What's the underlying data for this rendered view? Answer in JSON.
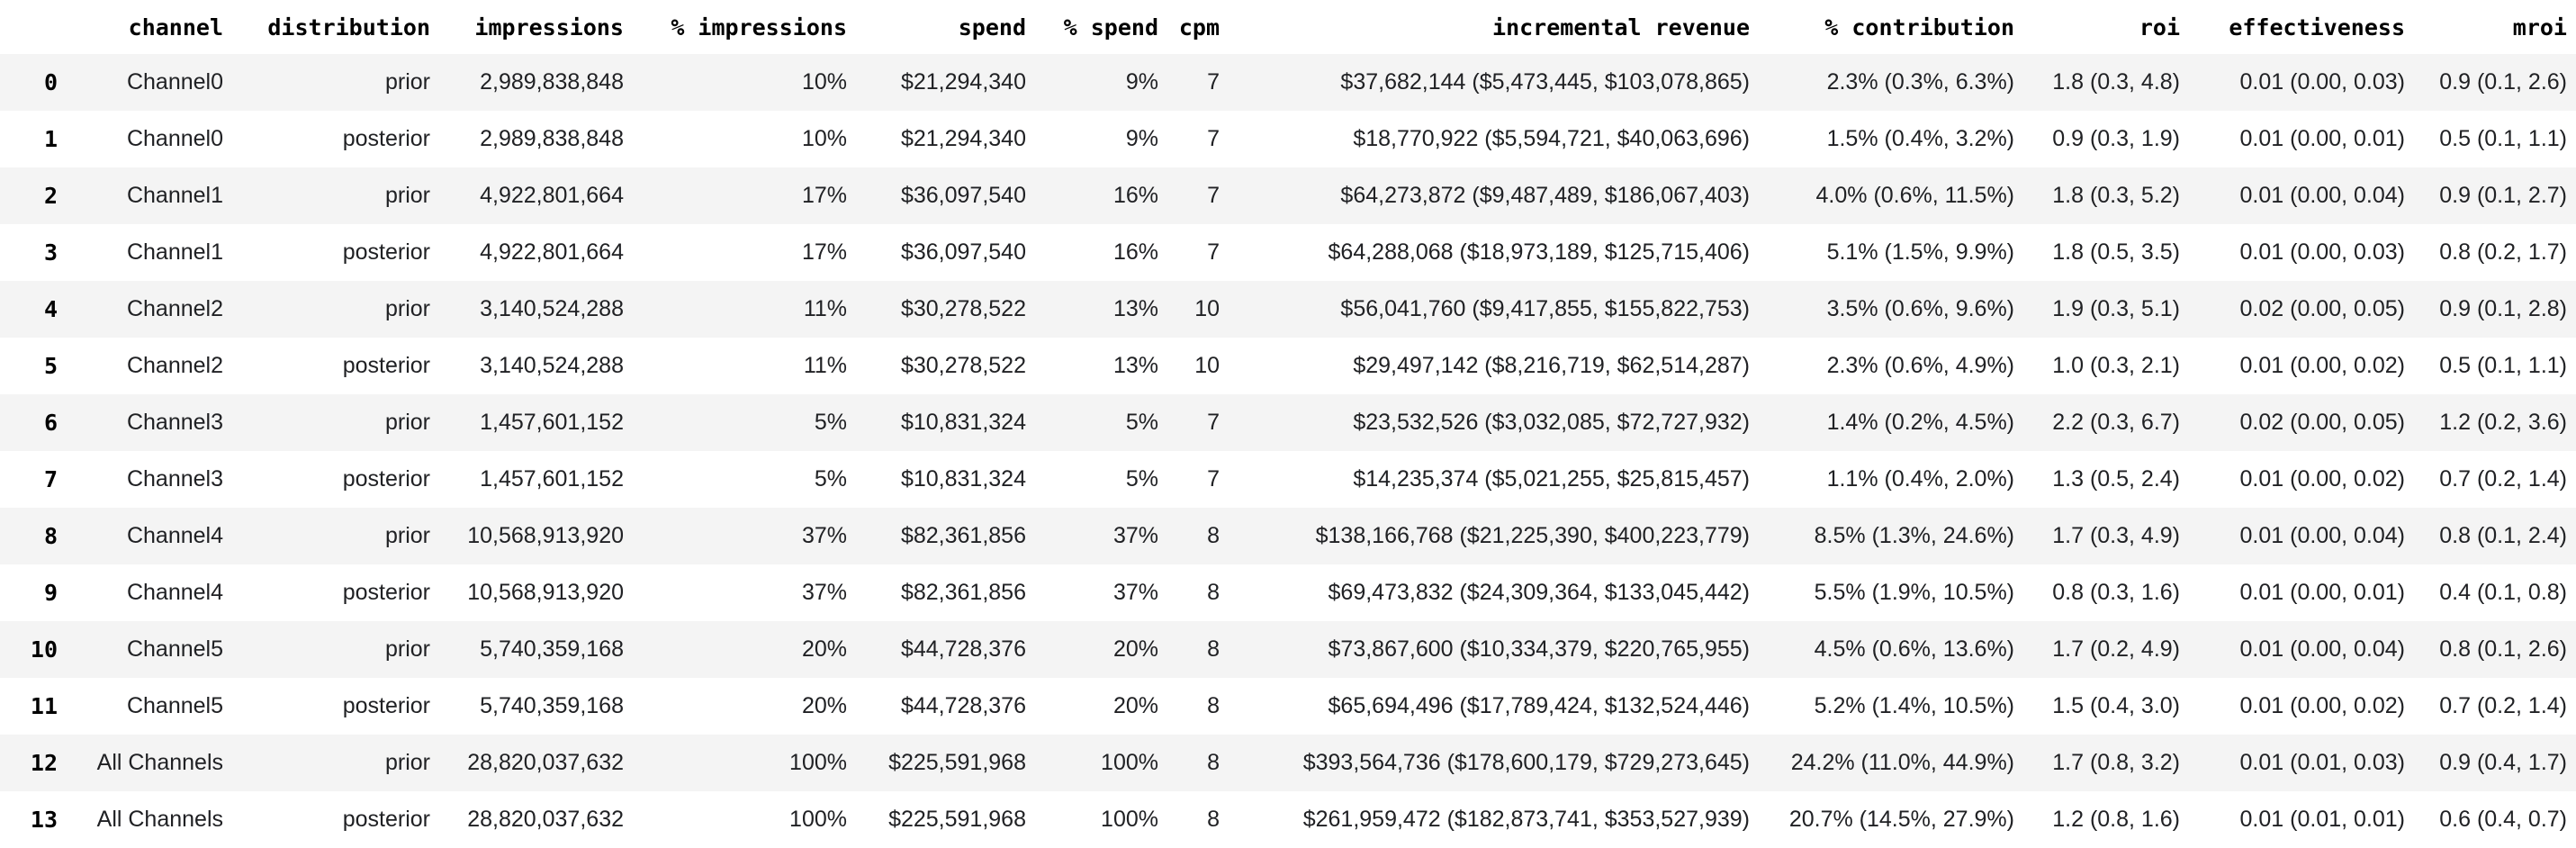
{
  "style": {
    "stripe_color": "#f4f4f4",
    "text_color": "#202124",
    "header_color": "#000000"
  },
  "chart_data": {
    "type": "table",
    "title": "",
    "columns": [
      "channel",
      "distribution",
      "impressions",
      "% impressions",
      "spend",
      "% spend",
      "cpm",
      "incremental revenue",
      "% contribution",
      "roi",
      "effectiveness",
      "mroi"
    ],
    "index": [
      "0",
      "1",
      "2",
      "3",
      "4",
      "5",
      "6",
      "7",
      "8",
      "9",
      "10",
      "11",
      "12",
      "13"
    ],
    "rows": [
      [
        "Channel0",
        "prior",
        "2,989,838,848",
        "10%",
        "$21,294,340",
        "9%",
        "7",
        "$37,682,144 ($5,473,445, $103,078,865)",
        "2.3% (0.3%, 6.3%)",
        "1.8 (0.3, 4.8)",
        "0.01 (0.00, 0.03)",
        "0.9 (0.1, 2.6)"
      ],
      [
        "Channel0",
        "posterior",
        "2,989,838,848",
        "10%",
        "$21,294,340",
        "9%",
        "7",
        "$18,770,922 ($5,594,721, $40,063,696)",
        "1.5% (0.4%, 3.2%)",
        "0.9 (0.3, 1.9)",
        "0.01 (0.00, 0.01)",
        "0.5 (0.1, 1.1)"
      ],
      [
        "Channel1",
        "prior",
        "4,922,801,664",
        "17%",
        "$36,097,540",
        "16%",
        "7",
        "$64,273,872 ($9,487,489, $186,067,403)",
        "4.0% (0.6%, 11.5%)",
        "1.8 (0.3, 5.2)",
        "0.01 (0.00, 0.04)",
        "0.9 (0.1, 2.7)"
      ],
      [
        "Channel1",
        "posterior",
        "4,922,801,664",
        "17%",
        "$36,097,540",
        "16%",
        "7",
        "$64,288,068 ($18,973,189, $125,715,406)",
        "5.1% (1.5%, 9.9%)",
        "1.8 (0.5, 3.5)",
        "0.01 (0.00, 0.03)",
        "0.8 (0.2, 1.7)"
      ],
      [
        "Channel2",
        "prior",
        "3,140,524,288",
        "11%",
        "$30,278,522",
        "13%",
        "10",
        "$56,041,760 ($9,417,855, $155,822,753)",
        "3.5% (0.6%, 9.6%)",
        "1.9 (0.3, 5.1)",
        "0.02 (0.00, 0.05)",
        "0.9 (0.1, 2.8)"
      ],
      [
        "Channel2",
        "posterior",
        "3,140,524,288",
        "11%",
        "$30,278,522",
        "13%",
        "10",
        "$29,497,142 ($8,216,719, $62,514,287)",
        "2.3% (0.6%, 4.9%)",
        "1.0 (0.3, 2.1)",
        "0.01 (0.00, 0.02)",
        "0.5 (0.1, 1.1)"
      ],
      [
        "Channel3",
        "prior",
        "1,457,601,152",
        "5%",
        "$10,831,324",
        "5%",
        "7",
        "$23,532,526 ($3,032,085, $72,727,932)",
        "1.4% (0.2%, 4.5%)",
        "2.2 (0.3, 6.7)",
        "0.02 (0.00, 0.05)",
        "1.2 (0.2, 3.6)"
      ],
      [
        "Channel3",
        "posterior",
        "1,457,601,152",
        "5%",
        "$10,831,324",
        "5%",
        "7",
        "$14,235,374 ($5,021,255, $25,815,457)",
        "1.1% (0.4%, 2.0%)",
        "1.3 (0.5, 2.4)",
        "0.01 (0.00, 0.02)",
        "0.7 (0.2, 1.4)"
      ],
      [
        "Channel4",
        "prior",
        "10,568,913,920",
        "37%",
        "$82,361,856",
        "37%",
        "8",
        "$138,166,768 ($21,225,390, $400,223,779)",
        "8.5% (1.3%, 24.6%)",
        "1.7 (0.3, 4.9)",
        "0.01 (0.00, 0.04)",
        "0.8 (0.1, 2.4)"
      ],
      [
        "Channel4",
        "posterior",
        "10,568,913,920",
        "37%",
        "$82,361,856",
        "37%",
        "8",
        "$69,473,832 ($24,309,364, $133,045,442)",
        "5.5% (1.9%, 10.5%)",
        "0.8 (0.3, 1.6)",
        "0.01 (0.00, 0.01)",
        "0.4 (0.1, 0.8)"
      ],
      [
        "Channel5",
        "prior",
        "5,740,359,168",
        "20%",
        "$44,728,376",
        "20%",
        "8",
        "$73,867,600 ($10,334,379, $220,765,955)",
        "4.5% (0.6%, 13.6%)",
        "1.7 (0.2, 4.9)",
        "0.01 (0.00, 0.04)",
        "0.8 (0.1, 2.6)"
      ],
      [
        "Channel5",
        "posterior",
        "5,740,359,168",
        "20%",
        "$44,728,376",
        "20%",
        "8",
        "$65,694,496 ($17,789,424, $132,524,446)",
        "5.2% (1.4%, 10.5%)",
        "1.5 (0.4, 3.0)",
        "0.01 (0.00, 0.02)",
        "0.7 (0.2, 1.4)"
      ],
      [
        "All Channels",
        "prior",
        "28,820,037,632",
        "100%",
        "$225,591,968",
        "100%",
        "8",
        "$393,564,736 ($178,600,179, $729,273,645)",
        "24.2% (11.0%, 44.9%)",
        "1.7 (0.8, 3.2)",
        "0.01 (0.01, 0.03)",
        "0.9 (0.4, 1.7)"
      ],
      [
        "All Channels",
        "posterior",
        "28,820,037,632",
        "100%",
        "$225,591,968",
        "100%",
        "8",
        "$261,959,472 ($182,873,741, $353,527,939)",
        "20.7% (14.5%, 27.9%)",
        "1.2 (0.8, 1.6)",
        "0.01 (0.01, 0.01)",
        "0.6 (0.4, 0.7)"
      ]
    ]
  }
}
